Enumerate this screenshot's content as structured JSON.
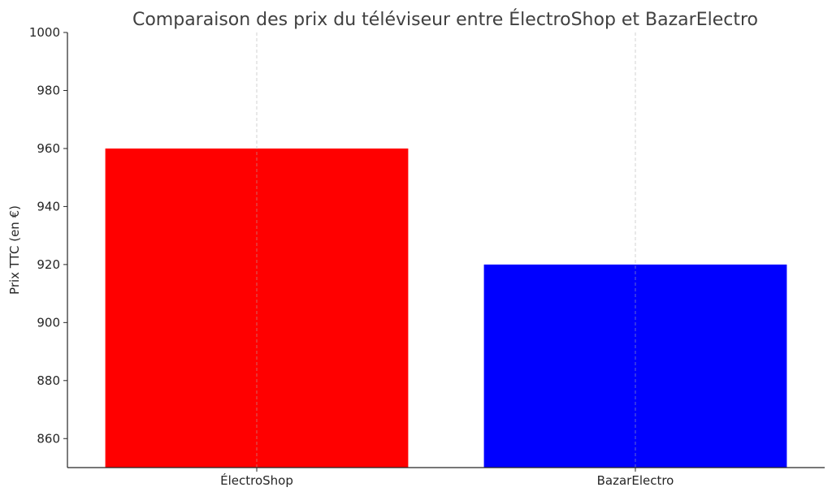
{
  "chart_data": {
    "type": "bar",
    "title": "Comparaison des prix du téléviseur entre ÉlectroShop et BazarElectro",
    "xlabel": "",
    "ylabel": "Prix TTC (en €)",
    "categories": [
      "ÉlectroShop",
      "BazarElectro"
    ],
    "values": [
      960,
      920
    ],
    "colors": [
      "#ff0000",
      "#0000ff"
    ],
    "ylim": [
      850,
      1000
    ],
    "yticks": [
      860,
      880,
      900,
      920,
      940,
      960,
      980,
      1000
    ],
    "ytick_labels": [
      "860",
      "880",
      "900",
      "920",
      "940",
      "960",
      "980",
      "1000"
    ],
    "grid": "vertical-dashed",
    "legend": "none"
  }
}
